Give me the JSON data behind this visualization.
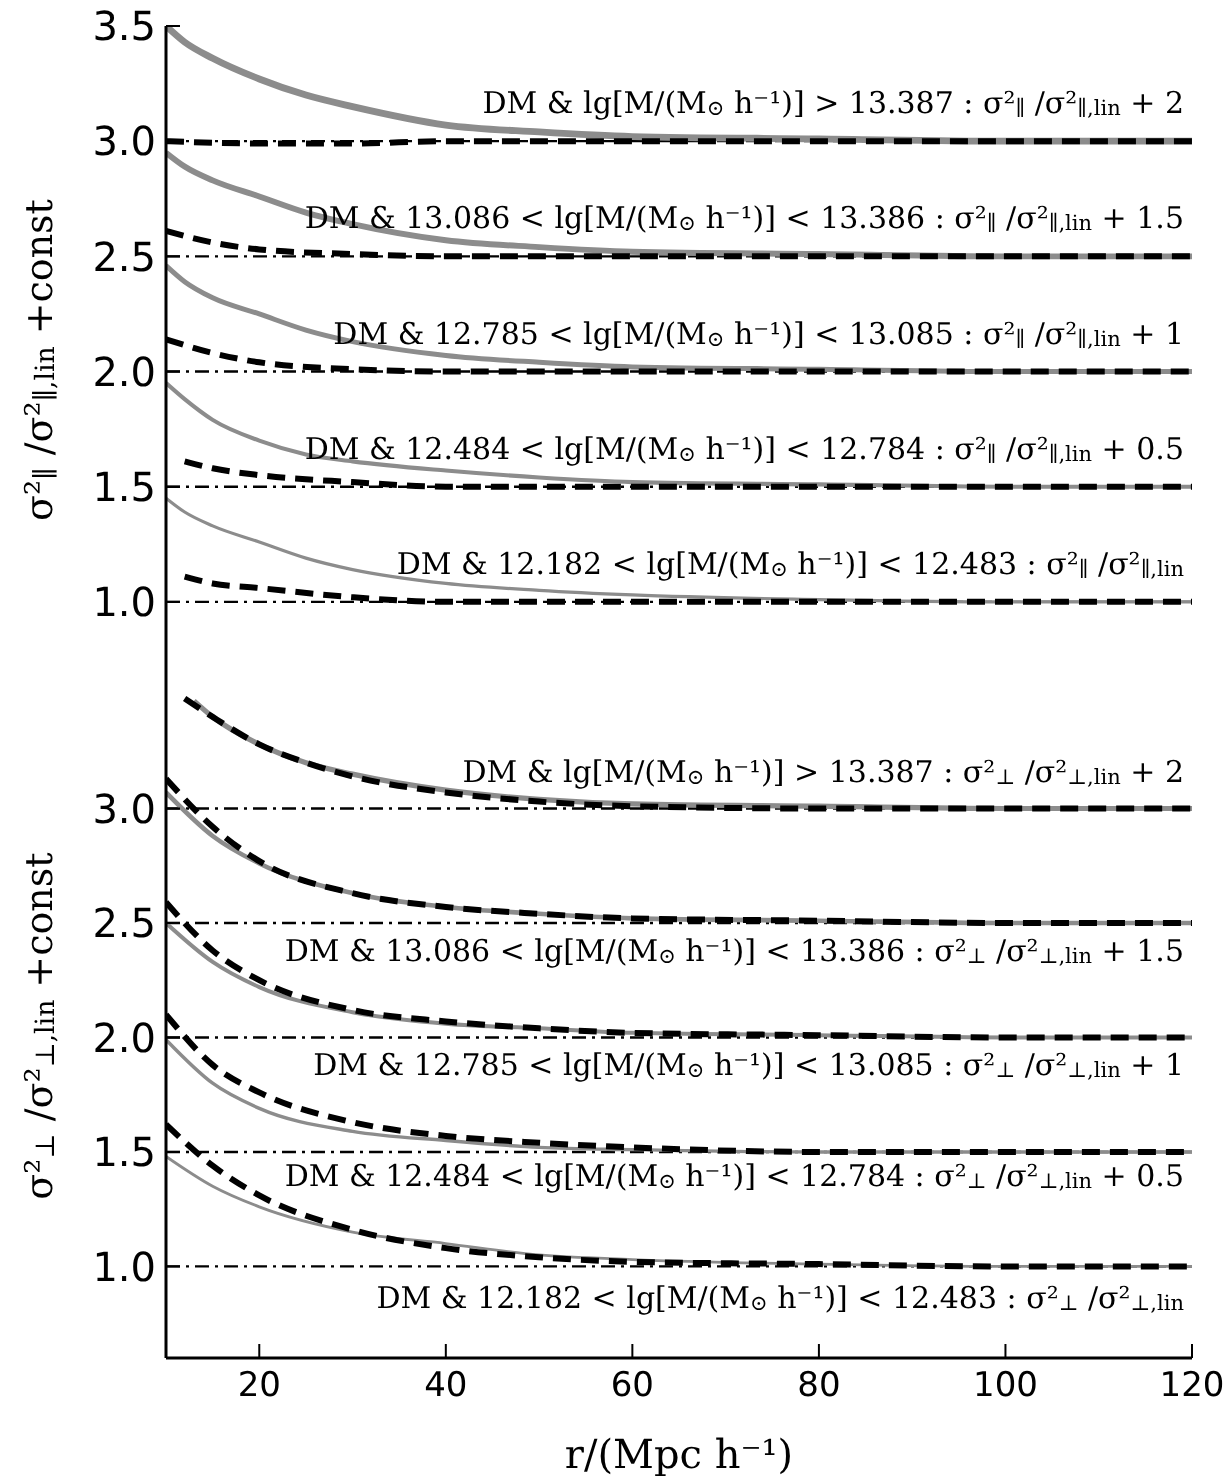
{
  "chart_data": [
    {
      "type": "line",
      "ylabel": "σ²$_{∥}$ /σ²$_{∥,lin}$ +const",
      "xlim": [
        10,
        120
      ],
      "xticks": [
        20,
        40,
        60,
        80,
        100,
        120
      ],
      "ylim": [
        0.6,
        3.5
      ],
      "yticks": [
        {
          "value": 1,
          "label": "1.0"
        },
        1.5,
        {
          "value": 2,
          "label": "2.0"
        },
        2.5,
        {
          "value": 3,
          "label": "3.0"
        },
        3.5
      ],
      "tick_labels": "y",
      "series": [
        {
          "color": "#8c8c8c",
          "line_style": "solid",
          "x": [
            10,
            12,
            15,
            20,
            25,
            30,
            40,
            50,
            60,
            80,
            100,
            120
          ],
          "values": [
            3.5,
            3.43,
            3.36,
            3.27,
            3.2,
            3.15,
            3.07,
            3.04,
            3.02,
            3.01,
            3.0,
            3.0
          ]
        },
        {
          "color": "#000000",
          "line_style": "dashed",
          "x": [
            10,
            20,
            30,
            40,
            60,
            80,
            100,
            120
          ],
          "values": [
            3.0,
            2.99,
            2.99,
            3.0,
            3.0,
            3.0,
            3.0,
            3.0
          ]
        },
        {
          "color": "#8c8c8c",
          "line_style": "solid",
          "x": [
            10,
            12,
            15,
            20,
            25,
            30,
            40,
            50,
            60,
            80,
            100,
            120
          ],
          "values": [
            2.95,
            2.89,
            2.83,
            2.76,
            2.69,
            2.64,
            2.57,
            2.54,
            2.52,
            2.51,
            2.5,
            2.5
          ]
        },
        {
          "color": "#000000",
          "line_style": "dashed",
          "x": [
            10,
            15,
            20,
            30,
            40,
            60,
            80,
            100,
            120
          ],
          "values": [
            2.61,
            2.56,
            2.53,
            2.51,
            2.5,
            2.5,
            2.5,
            2.5,
            2.5
          ]
        },
        {
          "color": "#8c8c8c",
          "line_style": "solid",
          "x": [
            10,
            12,
            15,
            20,
            25,
            30,
            40,
            50,
            60,
            80,
            100,
            120
          ],
          "values": [
            2.46,
            2.39,
            2.32,
            2.25,
            2.18,
            2.13,
            2.07,
            2.04,
            2.02,
            2.01,
            2.0,
            2.0
          ]
        },
        {
          "color": "#000000",
          "line_style": "dashed",
          "x": [
            10,
            15,
            20,
            30,
            40,
            60,
            80,
            100,
            120
          ],
          "values": [
            2.14,
            2.08,
            2.04,
            2.01,
            2.0,
            2.0,
            2.0,
            2.0,
            2.0
          ]
        },
        {
          "color": "#8c8c8c",
          "line_style": "solid",
          "x": [
            10,
            12,
            15,
            20,
            25,
            30,
            40,
            50,
            60,
            80,
            100,
            120
          ],
          "values": [
            1.95,
            1.88,
            1.79,
            1.7,
            1.64,
            1.61,
            1.57,
            1.54,
            1.52,
            1.51,
            1.5,
            1.5
          ]
        },
        {
          "color": "#000000",
          "line_style": "dashed",
          "x": [
            12,
            15,
            20,
            30,
            40,
            60,
            80,
            100,
            120
          ],
          "values": [
            1.61,
            1.58,
            1.55,
            1.52,
            1.5,
            1.5,
            1.5,
            1.5,
            1.5
          ]
        },
        {
          "color": "#8c8c8c",
          "line_style": "solid",
          "x": [
            10,
            12,
            15,
            20,
            25,
            30,
            40,
            50,
            60,
            80,
            100,
            120
          ],
          "values": [
            1.45,
            1.39,
            1.33,
            1.26,
            1.19,
            1.14,
            1.08,
            1.05,
            1.03,
            1.01,
            1.0,
            1.0
          ]
        },
        {
          "color": "#000000",
          "line_style": "dashed",
          "x": [
            12,
            15,
            20,
            30,
            40,
            60,
            80,
            100,
            120
          ],
          "values": [
            1.11,
            1.08,
            1.06,
            1.02,
            1.0,
            1.0,
            1.0,
            1.0,
            1.0
          ]
        }
      ],
      "ref_lines": [
        {
          "axis": "y",
          "value": 3.0,
          "color": "#000000",
          "line_style": "dashdot"
        },
        {
          "axis": "y",
          "value": 2.5,
          "color": "#000000",
          "line_style": "dashdot"
        },
        {
          "axis": "y",
          "value": 2.0,
          "color": "#000000",
          "line_style": "dashdot"
        },
        {
          "axis": "y",
          "value": 1.5,
          "color": "#000000",
          "line_style": "dashdot"
        },
        {
          "axis": "y",
          "value": 1.0,
          "color": "#000000",
          "line_style": "dashdot"
        }
      ],
      "annotations": [
        "DM & lg[M/(M$_{⊙}$ h⁻¹)] > 13.387 : σ²$_{∥}$ /σ²$_{∥,lin}$ + 2",
        "DM & 13.086 < lg[M/(M$_{⊙}$ h⁻¹)] < 13.386 : σ²$_{∥}$ /σ²$_{∥,lin}$ + 1.5",
        "DM & 12.785 < lg[M/(M$_{⊙}$ h⁻¹)] < 13.085 : σ²$_{∥}$ /σ²$_{∥,lin}$ + 1",
        "DM & 12.484 < lg[M/(M$_{⊙}$ h⁻¹)] < 12.784 : σ²$_{∥}$ /σ²$_{∥,lin}$ + 0.5",
        "DM & 12.182 < lg[M/(M$_{⊙}$ h⁻¹)] < 12.483 : σ²$_{∥}$ /σ²$_{∥,lin}$"
      ]
    },
    {
      "type": "line",
      "xlabel": "r/(Mpc h⁻¹)",
      "ylabel": "σ²$_{⊥}$ /σ²$_{⊥,lin}$ +const",
      "xlim": [
        10,
        120
      ],
      "xticks": [
        20,
        40,
        60,
        80,
        100,
        120
      ],
      "ylim": [
        0.6,
        3.5
      ],
      "yticks": [
        {
          "value": 1,
          "label": "1.0"
        },
        1.5,
        {
          "value": 2,
          "label": "2.0"
        },
        2.5,
        {
          "value": 3,
          "label": "3.0"
        }
      ],
      "series": [
        {
          "color": "#8c8c8c",
          "line_style": "solid",
          "x": [
            13,
            15,
            20,
            25,
            30,
            40,
            50,
            60,
            80,
            100,
            120
          ],
          "values": [
            3.47,
            3.4,
            3.28,
            3.2,
            3.15,
            3.08,
            3.04,
            3.02,
            3.01,
            3.0,
            3.0
          ]
        },
        {
          "color": "#000000",
          "line_style": "dashed",
          "x": [
            12,
            15,
            20,
            25,
            30,
            40,
            50,
            60,
            80,
            100,
            120
          ],
          "values": [
            3.48,
            3.4,
            3.28,
            3.2,
            3.14,
            3.07,
            3.03,
            3.01,
            3.0,
            3.0,
            3.0
          ]
        },
        {
          "color": "#8c8c8c",
          "line_style": "solid",
          "x": [
            10,
            15,
            20,
            30,
            40,
            50,
            60,
            80,
            100,
            120
          ],
          "values": [
            3.07,
            2.88,
            2.76,
            2.63,
            2.57,
            2.54,
            2.52,
            2.51,
            2.5,
            2.5
          ]
        },
        {
          "color": "#000000",
          "line_style": "dashed",
          "x": [
            10,
            15,
            20,
            30,
            40,
            50,
            60,
            80,
            100,
            120
          ],
          "values": [
            3.13,
            2.92,
            2.77,
            2.63,
            2.57,
            2.54,
            2.52,
            2.51,
            2.5,
            2.5
          ]
        },
        {
          "color": "#8c8c8c",
          "line_style": "solid",
          "x": [
            10,
            15,
            20,
            30,
            40,
            50,
            60,
            80,
            100,
            120
          ],
          "values": [
            2.5,
            2.33,
            2.22,
            2.11,
            2.06,
            2.04,
            2.02,
            2.01,
            2.0,
            2.0
          ]
        },
        {
          "color": "#000000",
          "line_style": "dashed",
          "x": [
            10,
            15,
            20,
            30,
            40,
            50,
            60,
            80,
            100,
            120
          ],
          "values": [
            2.59,
            2.38,
            2.25,
            2.12,
            2.07,
            2.04,
            2.02,
            2.01,
            2.0,
            2.0
          ]
        },
        {
          "color": "#8c8c8c",
          "line_style": "solid",
          "x": [
            10,
            15,
            20,
            30,
            40,
            50,
            60,
            80,
            100,
            120
          ],
          "values": [
            1.99,
            1.8,
            1.69,
            1.59,
            1.55,
            1.52,
            1.51,
            1.5,
            1.5,
            1.5
          ]
        },
        {
          "color": "#000000",
          "line_style": "dashed",
          "x": [
            10,
            15,
            20,
            30,
            40,
            50,
            60,
            80,
            100,
            120
          ],
          "values": [
            2.1,
            1.88,
            1.76,
            1.63,
            1.57,
            1.54,
            1.52,
            1.5,
            1.5,
            1.5
          ]
        },
        {
          "color": "#8c8c8c",
          "line_style": "solid",
          "x": [
            10,
            15,
            20,
            30,
            40,
            50,
            60,
            80,
            100,
            120
          ],
          "values": [
            1.48,
            1.35,
            1.26,
            1.15,
            1.1,
            1.05,
            1.03,
            1.01,
            1.0,
            1.0
          ]
        },
        {
          "color": "#000000",
          "line_style": "dashed",
          "x": [
            10,
            15,
            20,
            30,
            40,
            50,
            60,
            80,
            100,
            120
          ],
          "values": [
            1.62,
            1.44,
            1.31,
            1.16,
            1.08,
            1.04,
            1.02,
            1.01,
            1.0,
            1.0
          ]
        }
      ],
      "ref_lines": [
        {
          "axis": "y",
          "value": 3.0,
          "color": "#000000",
          "line_style": "dashdot"
        },
        {
          "axis": "y",
          "value": 2.5,
          "color": "#000000",
          "line_style": "dashdot"
        },
        {
          "axis": "y",
          "value": 2.0,
          "color": "#000000",
          "line_style": "dashdot"
        },
        {
          "axis": "y",
          "value": 1.5,
          "color": "#000000",
          "line_style": "dashdot"
        },
        {
          "axis": "y",
          "value": 1.0,
          "color": "#000000",
          "line_style": "dashdot"
        }
      ],
      "annotations": [
        "DM & lg[M/(M$_{⊙}$ h⁻¹)] > 13.387 : σ²$_{⊥}$ /σ²$_{⊥,lin}$ + 2",
        "DM & 13.086 < lg[M/(M$_{⊙}$ h⁻¹)] < 13.386 : σ²$_{⊥}$ /σ²$_{⊥,lin}$ + 1.5",
        "DM & 12.785 < lg[M/(M$_{⊙}$ h⁻¹)] < 13.085 : σ²$_{⊥}$ /σ²$_{⊥,lin}$ + 1",
        "DM & 12.484 < lg[M/(M$_{⊙}$ h⁻¹)] < 12.784 : σ²$_{⊥}$ /σ²$_{⊥,lin}$ + 0.5",
        "DM & 12.182 < lg[M/(M$_{⊙}$ h⁻¹)] < 12.483 : σ²$_{⊥}$ /σ²$_{⊥,lin}$"
      ]
    }
  ]
}
